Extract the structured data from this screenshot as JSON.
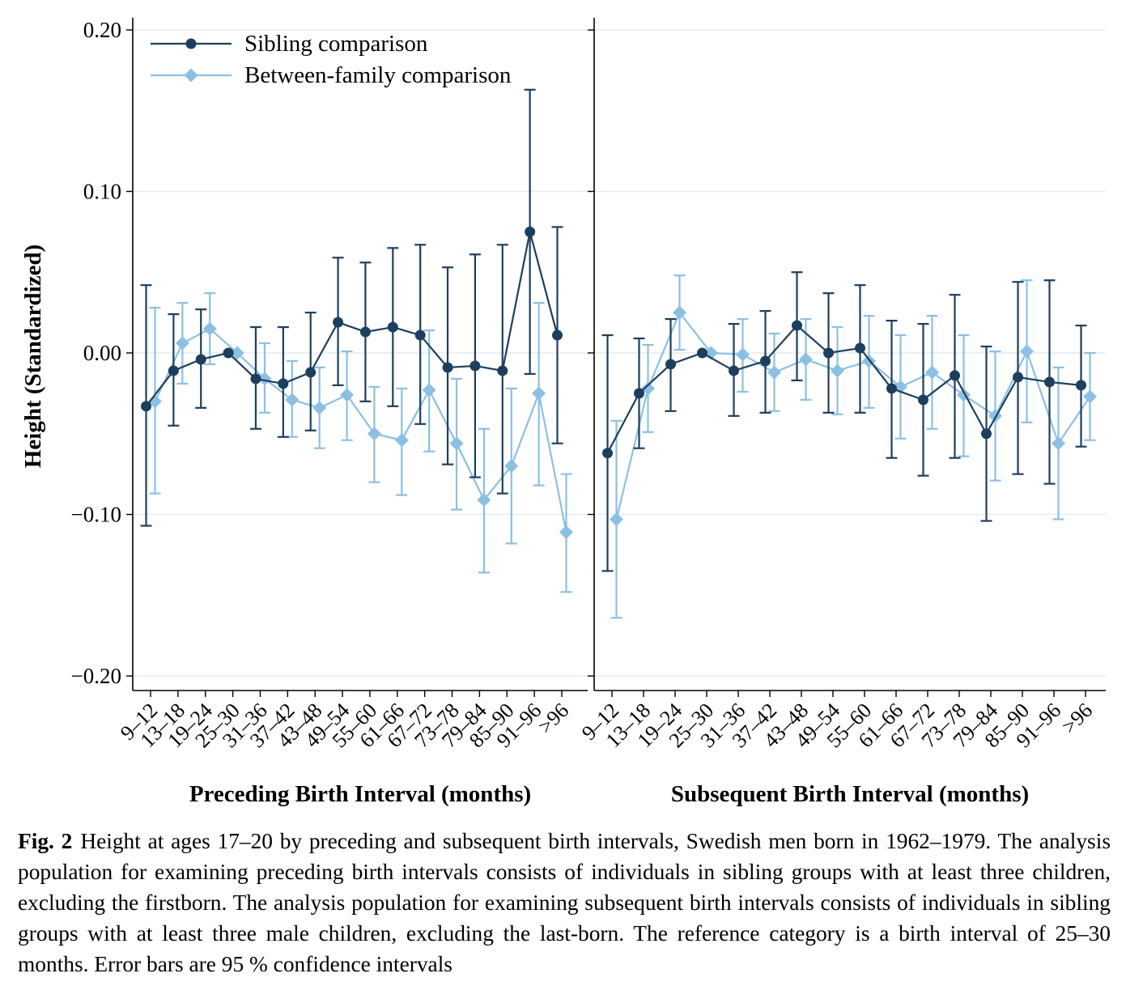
{
  "chart_data": [
    {
      "type": "line",
      "xlabel": "Preceding Birth Interval (months)",
      "ylabel": "Height (Standardized)",
      "ylim": [
        -0.2,
        0.2
      ],
      "yticks": [
        -0.2,
        -0.1,
        0.0,
        0.1,
        0.2
      ],
      "ytick_labels": [
        "−0.20",
        "−0.10",
        "0.00",
        "0.10",
        "0.20"
      ],
      "grid": true,
      "legend": "top-left",
      "categories": [
        "9–12",
        "13–18",
        "19–24",
        "25–30",
        "31–36",
        "37–42",
        "43–48",
        "49–54",
        "55–60",
        "61–66",
        "67–72",
        "73–78",
        "79–84",
        "85–90",
        "91–96",
        ">96"
      ],
      "series": [
        {
          "name": "Sibling comparison",
          "marker": "circle",
          "color": "#1c3f5e",
          "values": [
            -0.033,
            -0.011,
            -0.004,
            0.0,
            -0.016,
            -0.019,
            -0.012,
            0.019,
            0.013,
            0.016,
            0.011,
            -0.009,
            -0.008,
            -0.011,
            0.075,
            0.011
          ],
          "ci_low": [
            -0.107,
            -0.045,
            -0.034,
            0.0,
            -0.047,
            -0.052,
            -0.048,
            -0.02,
            -0.03,
            -0.033,
            -0.044,
            -0.069,
            -0.077,
            -0.087,
            -0.013,
            -0.056
          ],
          "ci_high": [
            0.042,
            0.024,
            0.027,
            0.0,
            0.016,
            0.016,
            0.025,
            0.059,
            0.056,
            0.065,
            0.067,
            0.053,
            0.061,
            0.067,
            0.163,
            0.078
          ]
        },
        {
          "name": "Between-family comparison",
          "marker": "diamond",
          "color": "#8cc0e3",
          "values": [
            -0.03,
            0.006,
            0.015,
            0.0,
            -0.016,
            -0.029,
            -0.034,
            -0.026,
            -0.05,
            -0.054,
            -0.023,
            -0.056,
            -0.091,
            -0.07,
            -0.025,
            -0.111
          ],
          "ci_low": [
            -0.087,
            -0.019,
            -0.007,
            0.0,
            -0.037,
            -0.052,
            -0.059,
            -0.054,
            -0.08,
            -0.088,
            -0.061,
            -0.097,
            -0.136,
            -0.118,
            -0.082,
            -0.148
          ],
          "ci_high": [
            0.028,
            0.031,
            0.037,
            0.0,
            0.006,
            -0.005,
            -0.009,
            0.001,
            -0.021,
            -0.022,
            0.014,
            -0.016,
            -0.047,
            -0.022,
            0.031,
            -0.075
          ]
        }
      ]
    },
    {
      "type": "line",
      "xlabel": "Subsequent Birth Interval (months)",
      "ylabel": "",
      "ylim": [
        -0.2,
        0.2
      ],
      "grid": true,
      "categories": [
        "9–12",
        "13–18",
        "19–24",
        "25–30",
        "31–36",
        "37–42",
        "43–48",
        "49–54",
        "55–60",
        "61–66",
        "67–72",
        "73–78",
        "79–84",
        "85–90",
        "91–96",
        ">96"
      ],
      "series": [
        {
          "name": "Sibling comparison",
          "marker": "circle",
          "color": "#1c3f5e",
          "values": [
            -0.062,
            -0.025,
            -0.007,
            0.0,
            -0.011,
            -0.005,
            0.017,
            0.0,
            0.003,
            -0.022,
            -0.029,
            -0.014,
            -0.05,
            -0.015,
            -0.018,
            -0.02
          ],
          "ci_low": [
            -0.135,
            -0.059,
            -0.036,
            0.0,
            -0.039,
            -0.037,
            -0.017,
            -0.037,
            -0.037,
            -0.065,
            -0.076,
            -0.065,
            -0.104,
            -0.075,
            -0.081,
            -0.058
          ],
          "ci_high": [
            0.011,
            0.009,
            0.021,
            0.0,
            0.018,
            0.026,
            0.05,
            0.037,
            0.042,
            0.02,
            0.018,
            0.036,
            0.004,
            0.044,
            0.045,
            0.017
          ]
        },
        {
          "name": "Between-family comparison",
          "marker": "diamond",
          "color": "#8cc0e3",
          "values": [
            -0.103,
            -0.022,
            0.025,
            0.0,
            -0.001,
            -0.012,
            -0.004,
            -0.011,
            -0.005,
            -0.021,
            -0.012,
            -0.026,
            -0.039,
            0.001,
            -0.056,
            -0.027
          ],
          "ci_low": [
            -0.164,
            -0.049,
            0.002,
            0.0,
            -0.024,
            -0.036,
            -0.029,
            -0.038,
            -0.034,
            -0.053,
            -0.047,
            -0.064,
            -0.079,
            -0.043,
            -0.103,
            -0.054
          ],
          "ci_high": [
            -0.042,
            0.005,
            0.048,
            0.0,
            0.021,
            0.012,
            0.021,
            0.016,
            0.023,
            0.011,
            0.023,
            0.011,
            0.001,
            0.045,
            -0.009,
            0.0
          ]
        }
      ]
    }
  ],
  "caption": {
    "label": "Fig. 2",
    "text": "Height at ages 17–20 by preceding and subsequent birth intervals, Swedish men born in 1962–1979. The analysis population for examining preceding birth intervals consists of individuals in sibling groups with at least three children, excluding the firstborn. The analysis population for examining subsequent birth intervals consists of individuals in sibling groups with at least three male children, excluding the last-born. The reference category is a birth interval of 25–30 months. Error bars are 95 % confidence intervals"
  }
}
